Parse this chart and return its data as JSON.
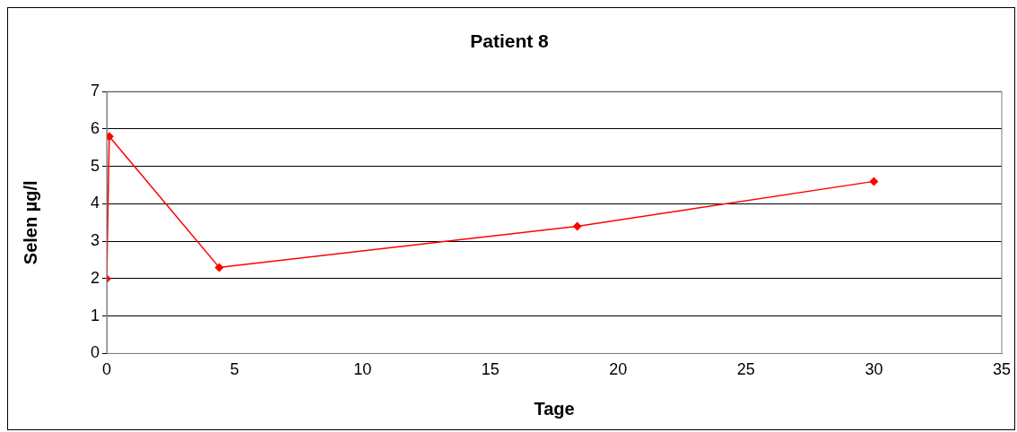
{
  "chart_data": {
    "type": "line",
    "title": "Patient 8",
    "xlabel": "Tage",
    "ylabel": "Selen µg/l",
    "series": [
      {
        "color": "#ff0000",
        "x": [
          0,
          0.1,
          4.4,
          18.4,
          30
        ],
        "values": [
          2,
          5.8,
          2.3,
          3.4,
          4.6
        ]
      }
    ],
    "xlim": [
      0,
      35
    ],
    "xticks": [
      0,
      5,
      10,
      15,
      20,
      25,
      30,
      35
    ],
    "ylim": [
      0,
      7
    ],
    "yticks": [
      0,
      1,
      2,
      3,
      4,
      5,
      6,
      7
    ],
    "grid": "y",
    "legend": false,
    "marker": "diamond",
    "line_style": "solid"
  }
}
